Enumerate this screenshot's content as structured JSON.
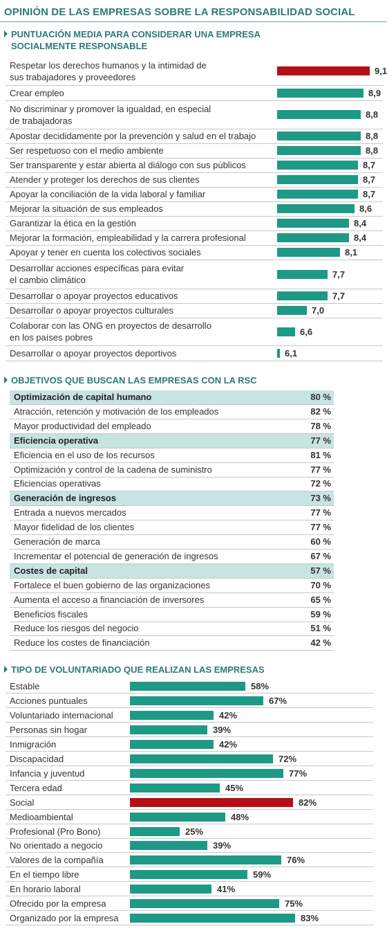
{
  "title": "OPINIÓN DE LAS EMPRESAS SOBRE LA RESPONSABILIDAD SOCIAL",
  "colors": {
    "teal": "#1e9986",
    "red": "#b31016",
    "accent_text": "#2c7a76",
    "group_bg": "#c7e4e2"
  },
  "section1": {
    "title_lines": [
      "PUNTUACIÓN MEDIA PARA CONSIDERAR UNA EMPRESA",
      "SOCIALMENTE RESPONSABLE"
    ]
  },
  "section2": {
    "title": "OBJETIVOS QUE BUSCAN LAS EMPRESAS CON LA RSC"
  },
  "section3": {
    "title": "TIPO DE VOLUNTARIADO QUE REALIZAN LAS EMPRESAS"
  },
  "chart_data": [
    {
      "type": "bar",
      "orientation": "horizontal",
      "categories": [
        "Respetar los derechos humanos y la intimidad de sus trabajadores y proveedores",
        "Crear empleo",
        "No discriminar y promover la igualdad, en especial de trabajadoras",
        "Apostar decididamente por la prevención y salud en el trabajo",
        "Ser respetuoso con el medio ambiente",
        "Ser transparente y estar abierta al diálogo con sus públicos",
        "Atender y proteger los derechos de sus clientes",
        "Apoyar la conciliación de la vida laboral y familiar",
        "Mejorar la situación de sus empleados",
        "Garantizar la ética en la gestión",
        "Mejorar la formación, empleabilidad y la carrera profesional",
        "Apoyar y tener en cuenta los colectivos sociales",
        "Desarrollar acciones específicas para evitar el cambio climático",
        "Desarrollar o apoyar proyectos educativos",
        "Desarrollar o apoyar proyectos culturales",
        "Colaborar con las ONG en proyectos de desarrollo en los países pobres",
        "Desarrollar o apoyar proyectos deportivos"
      ],
      "label_lines": [
        [
          "Respetar los derechos humanos y la intimidad de",
          "sus trabajadores y proveedores"
        ],
        [
          "Crear empleo"
        ],
        [
          "No discriminar y promover la igualdad, en especial",
          "de trabajadoras"
        ],
        [
          "Apostar decididamente por la prevención y salud en el trabajo"
        ],
        [
          "Ser respetuoso con el medio ambiente"
        ],
        [
          "Ser transparente y estar abierta al diálogo con sus públicos"
        ],
        [
          "Atender y proteger los derechos de sus clientes"
        ],
        [
          "Apoyar la conciliación de la vida laboral y familiar"
        ],
        [
          "Mejorar la situación de sus empleados"
        ],
        [
          "Garantizar la ética en la gestión"
        ],
        [
          "Mejorar la formación, empleabilidad y la carrera profesional"
        ],
        [
          "Apoyar y tener en cuenta los colectivos sociales"
        ],
        [
          "Desarrollar acciones específicas para evitar",
          "el cambio climático"
        ],
        [
          "Desarrollar o apoyar proyectos educativos"
        ],
        [
          "Desarrollar o apoyar proyectos culturales"
        ],
        [
          "Colaborar con las ONG en proyectos de desarrollo",
          "en los países pobres"
        ],
        [
          "Desarrollar o apoyar proyectos deportivos"
        ]
      ],
      "values": [
        9.1,
        8.9,
        8.8,
        8.8,
        8.8,
        8.7,
        8.7,
        8.7,
        8.6,
        8.4,
        8.4,
        8.1,
        7.7,
        7.7,
        7.0,
        6.6,
        6.1
      ],
      "value_labels": [
        "9,1",
        "8,9",
        "8,8",
        "8,8",
        "8,8",
        "8,7",
        "8,7",
        "8,7",
        "8,6",
        "8,4",
        "8,4",
        "8,1",
        "7,7",
        "7,7",
        "7,0",
        "6,6",
        "6,1"
      ],
      "highlight_index": 0
    },
    {
      "type": "table",
      "rows": [
        {
          "label": "Optimización de capital humano",
          "value": "80 %",
          "group": true
        },
        {
          "label": "Atracción, retención y motivación de los empleados",
          "value": "82 %"
        },
        {
          "label": "Mayor productividad del empleado",
          "value": "78 %"
        },
        {
          "label": "Eficiencia operativa",
          "value": "77 %",
          "group": true
        },
        {
          "label": "Eficiencia en el uso de los recursos",
          "value": "81 %"
        },
        {
          "label": "Optimización y control de la cadena de suministro",
          "value": "77 %"
        },
        {
          "label": "Eficiencias operativas",
          "value": "72 %"
        },
        {
          "label": "Generación de ingresos",
          "value": "73 %",
          "group": true
        },
        {
          "label": "Entrada a nuevos mercados",
          "value": "77 %"
        },
        {
          "label": "Mayor fidelidad de los clientes",
          "value": "77 %"
        },
        {
          "label": "Generación de marca",
          "value": "60 %"
        },
        {
          "label": "Incrementar el potencial de generación de ingresos",
          "value": "67 %"
        },
        {
          "label": "Costes de capital",
          "value": "57 %",
          "group": true
        },
        {
          "label": "Fortalece el buen gobierno de las organizaciones",
          "value": "70 %"
        },
        {
          "label": "Aumenta el acceso a financiación de inversores",
          "value": "65 %"
        },
        {
          "label": "Beneficios fiscales",
          "value": "59 %"
        },
        {
          "label": "Reduce los riesgos del negocio",
          "value": "51 %"
        },
        {
          "label": "Reduce los costes de financiación",
          "value": "42 %"
        }
      ]
    },
    {
      "type": "bar",
      "orientation": "horizontal",
      "categories": [
        "Estable",
        "Acciones puntuales",
        "Voluntariado internacional",
        "Personas sin hogar",
        "Inmigración",
        "Discapacidad",
        "Infancia y juventud",
        "Tercera edad",
        "Social",
        "Medioambiental",
        "Profesional (Pro Bono)",
        "No orientado a negocio",
        "Valores de la compañía",
        "En el tiempo libre",
        "En horario laboral",
        "Ofrecido por la empresa",
        "Organizado por la empresa"
      ],
      "values": [
        58,
        67,
        42,
        39,
        42,
        72,
        77,
        45,
        82,
        48,
        25,
        39,
        76,
        59,
        41,
        75,
        83
      ],
      "value_labels": [
        "58%",
        "67%",
        "42%",
        "39%",
        "42%",
        "72%",
        "77%",
        "45%",
        "82%",
        "48%",
        "25%",
        "39%",
        "76%",
        "59%",
        "41%",
        "75%",
        "83%"
      ],
      "highlight_index": 8
    }
  ]
}
